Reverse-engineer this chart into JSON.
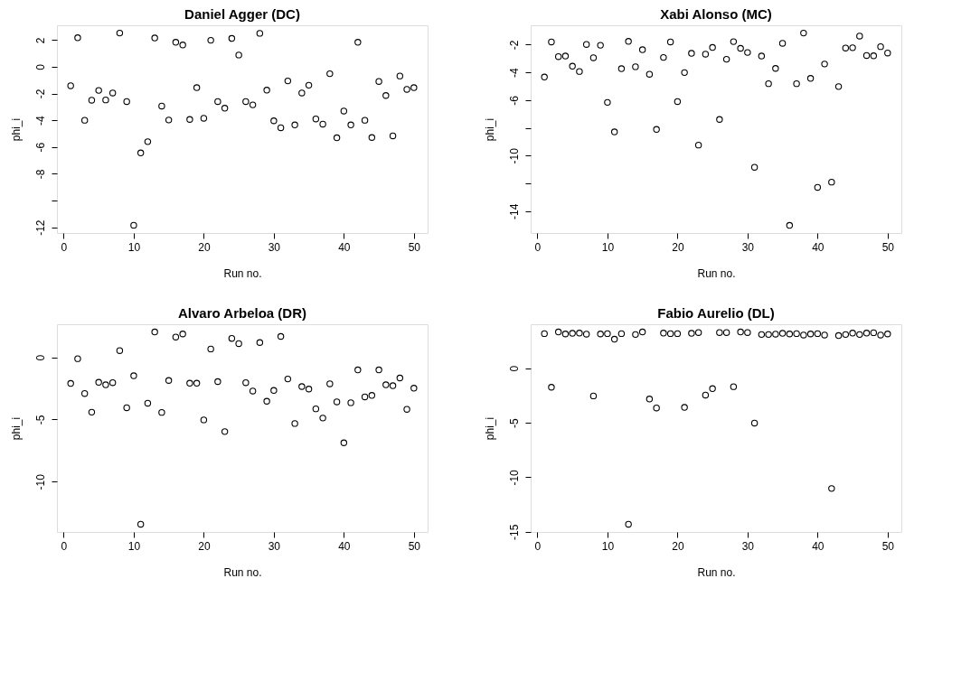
{
  "chart_data": [
    {
      "type": "scatter",
      "title": "Daniel Agger (DC)",
      "xlabel": "Run no.",
      "ylabel": "phi_i",
      "marker": "circle",
      "grid": false,
      "xlim": [
        -0.96,
        51.96
      ],
      "ylim": [
        -12.43,
        3.1
      ],
      "xticks": [
        0,
        10,
        20,
        30,
        40,
        50
      ],
      "yticks": [
        2,
        0,
        -2,
        -4,
        -6,
        -8,
        {
          "value": -10,
          "label": null
        },
        -12
      ],
      "x": [
        1,
        2,
        3,
        4,
        5,
        6,
        7,
        8,
        9,
        10,
        11,
        12,
        13,
        14,
        15,
        16,
        17,
        18,
        19,
        20,
        21,
        22,
        23,
        24,
        25,
        26,
        27,
        28,
        29,
        30,
        31,
        32,
        33,
        34,
        35,
        36,
        37,
        38,
        39,
        40,
        41,
        42,
        43,
        44,
        45,
        46,
        47,
        48,
        49,
        50
      ],
      "series": [
        {
          "color": "#000000",
          "values": [
            -1.42,
            2.17,
            -4.0,
            -2.5,
            -1.77,
            -2.48,
            -1.96,
            2.52,
            -2.6,
            -11.85,
            -6.44,
            -5.6,
            2.15,
            -2.94,
            -3.98,
            1.83,
            1.63,
            -3.94,
            -1.56,
            -3.85,
            1.98,
            -2.6,
            -3.1,
            2.12,
            0.88,
            -2.6,
            -2.85,
            2.5,
            -1.75,
            -4.04,
            -4.56,
            -1.06,
            -4.35,
            -1.96,
            -1.38,
            -3.9,
            -4.29,
            -0.52,
            -5.31,
            -3.31,
            -4.35,
            1.83,
            -4.0,
            -5.29,
            -1.1,
            -2.15,
            -5.17,
            -0.69,
            -1.69,
            -1.56
          ]
        }
      ]
    },
    {
      "type": "scatter",
      "title": "Xabi Alonso (MC)",
      "xlabel": "Run no.",
      "ylabel": "phi_i",
      "marker": "circle",
      "grid": false,
      "xlim": [
        -0.96,
        51.96
      ],
      "ylim": [
        -15.58,
        -0.6
      ],
      "xticks": [
        0,
        10,
        20,
        30,
        40,
        50
      ],
      "yticks": [
        -2,
        -4,
        -6,
        {
          "value": -8,
          "label": null
        },
        -10,
        {
          "value": -12,
          "label": null
        },
        -14
      ],
      "x": [
        1,
        2,
        3,
        4,
        5,
        6,
        7,
        8,
        9,
        10,
        11,
        12,
        13,
        14,
        15,
        16,
        17,
        18,
        19,
        20,
        21,
        22,
        23,
        24,
        25,
        26,
        27,
        28,
        29,
        30,
        31,
        32,
        33,
        34,
        35,
        36,
        37,
        38,
        39,
        40,
        41,
        42,
        43,
        44,
        45,
        46,
        47,
        48,
        49,
        50
      ],
      "series": [
        {
          "color": "#000000",
          "values": [
            -4.33,
            -1.8,
            -2.86,
            -2.82,
            -3.55,
            -3.93,
            -1.98,
            -2.94,
            -2.04,
            -6.16,
            -8.29,
            -3.73,
            -1.76,
            -3.59,
            -2.36,
            -4.13,
            -8.11,
            -2.92,
            -1.8,
            -6.1,
            -4.01,
            -2.62,
            -9.24,
            -2.68,
            -2.2,
            -7.39,
            -3.05,
            -1.78,
            -2.26,
            -2.56,
            -10.84,
            -2.82,
            -4.81,
            -3.71,
            -1.9,
            -15.03,
            -4.81,
            -1.16,
            -4.43,
            -12.29,
            -3.39,
            -11.91,
            -5.02,
            -2.24,
            -2.22,
            -1.38,
            -2.78,
            -2.8,
            -2.14,
            -2.6
          ]
        }
      ]
    },
    {
      "type": "scatter",
      "title": "Alvaro Arbeloa (DR)",
      "xlabel": "Run no.",
      "ylabel": "phi_i",
      "marker": "circle",
      "grid": false,
      "xlim": [
        -0.96,
        51.96
      ],
      "ylim": [
        -14.04,
        2.66
      ],
      "xticks": [
        0,
        10,
        20,
        30,
        40,
        50
      ],
      "yticks": [
        0,
        -5,
        -10
      ],
      "x": [
        1,
        2,
        3,
        4,
        5,
        6,
        7,
        8,
        9,
        10,
        11,
        12,
        13,
        14,
        15,
        16,
        17,
        18,
        19,
        20,
        21,
        22,
        23,
        24,
        25,
        26,
        27,
        28,
        29,
        30,
        31,
        32,
        33,
        34,
        35,
        36,
        37,
        38,
        39,
        40,
        41,
        42,
        43,
        44,
        45,
        46,
        47,
        48,
        49,
        50
      ],
      "series": [
        {
          "color": "#000000",
          "values": [
            -2.1,
            -0.11,
            -2.91,
            -4.41,
            -2.01,
            -2.21,
            -2.04,
            0.54,
            -4.05,
            -1.48,
            -13.42,
            -3.69,
            2.04,
            -4.43,
            -1.86,
            1.63,
            1.88,
            -2.08,
            -2.08,
            -5.03,
            0.67,
            -1.95,
            -5.97,
            1.52,
            1.1,
            -2.04,
            -2.71,
            1.19,
            -3.53,
            -2.66,
            1.68,
            -1.74,
            -5.32,
            -2.35,
            -2.55,
            -4.14,
            -4.88,
            -2.13,
            -3.58,
            -6.87,
            -3.65,
            -1.01,
            -3.18,
            -3.06,
            -1.01,
            -2.21,
            -2.28,
            -1.66,
            -4.18,
            -2.48
          ]
        }
      ]
    },
    {
      "type": "scatter",
      "title": "Fabio Aurelio (DL)",
      "xlabel": "Run no.",
      "ylabel": "phi_i",
      "marker": "circle",
      "grid": false,
      "xlim": [
        -0.96,
        51.96
      ],
      "ylim": [
        -15.02,
        4.04
      ],
      "xticks": [
        0,
        10,
        20,
        30,
        40,
        50
      ],
      "yticks": [
        0,
        -5,
        -10,
        -15
      ],
      "x": [
        1,
        2,
        3,
        4,
        5,
        6,
        7,
        8,
        9,
        10,
        11,
        12,
        13,
        14,
        15,
        16,
        17,
        18,
        19,
        20,
        21,
        22,
        23,
        24,
        25,
        26,
        27,
        28,
        29,
        30,
        31,
        32,
        33,
        34,
        35,
        36,
        37,
        38,
        39,
        40,
        41,
        42,
        43,
        44,
        45,
        46,
        47,
        48,
        49,
        50
      ],
      "series": [
        {
          "color": "#000000",
          "values": [
            3.18,
            -1.74,
            3.33,
            3.15,
            3.21,
            3.23,
            3.13,
            -2.54,
            3.15,
            3.18,
            2.67,
            3.18,
            -14.31,
            3.1,
            3.33,
            -2.82,
            -3.64,
            3.23,
            3.18,
            3.18,
            -3.59,
            3.21,
            3.28,
            -2.46,
            -1.87,
            3.28,
            3.28,
            -1.69,
            3.33,
            3.28,
            -5.03,
            3.1,
            3.1,
            3.13,
            3.21,
            3.15,
            3.18,
            3.05,
            3.15,
            3.18,
            3.05,
            -11.03,
            3.0,
            3.1,
            3.23,
            3.1,
            3.23,
            3.26,
            3.05,
            3.15
          ]
        }
      ]
    }
  ]
}
